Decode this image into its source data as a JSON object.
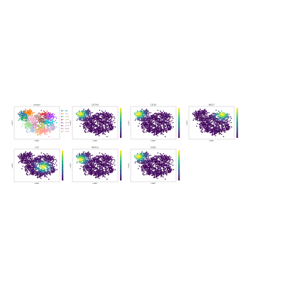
{
  "chart_data": [
    {
      "type": "scatter",
      "title": "leiden",
      "xlabel": "UMAP1",
      "ylabel": "UMAP2",
      "color_mode": "categorical",
      "legend_position": "right",
      "legend": [
        "0",
        "1",
        "2",
        "3",
        "4",
        "5",
        "6",
        "7",
        "8",
        "9",
        "10",
        "11",
        "12",
        "13",
        "14",
        "15"
      ],
      "palette": [
        "#1f77b4",
        "#ff7f0e",
        "#279e68",
        "#d62728",
        "#aa40fc",
        "#8c564b",
        "#e377c2",
        "#b5bd61",
        "#17becf",
        "#aec7e8",
        "#ffbb78",
        "#98df8a",
        "#ff9896",
        "#c5b0d5",
        "#c49c94",
        "#f7b6d2"
      ],
      "grid": false
    },
    {
      "type": "scatter",
      "title": "CD79A",
      "xlabel": "UMAP1",
      "ylabel": "UMAP2",
      "color_mode": "continuous",
      "colormap": "viridis",
      "hotspot": "top-left",
      "colorbar_ticks": [
        "",
        "",
        "",
        "",
        ""
      ],
      "grid": false
    },
    {
      "type": "scatter",
      "title": "CD3D",
      "xlabel": "UMAP1",
      "ylabel": "UMAP2",
      "color_mode": "continuous",
      "colormap": "viridis",
      "hotspot": "top-left",
      "colorbar_ticks": [
        "",
        "",
        "",
        "",
        ""
      ],
      "grid": false
    },
    {
      "type": "scatter",
      "title": "NKG7",
      "xlabel": "UMAP1",
      "ylabel": "UMAP2",
      "color_mode": "continuous",
      "colormap": "viridis",
      "hotspot": "top-right",
      "colorbar_ticks": [
        "",
        "",
        "",
        "",
        ""
      ],
      "grid": false
    },
    {
      "type": "scatter",
      "title": "LYZ",
      "xlabel": "UMAP1",
      "ylabel": "UMAP2",
      "color_mode": "continuous",
      "colormap": "viridis",
      "hotspot": "center-right",
      "colorbar_ticks": [
        "",
        "",
        "",
        "",
        ""
      ],
      "grid": false
    },
    {
      "type": "scatter",
      "title": "MS4A1",
      "xlabel": "UMAP1",
      "ylabel": "UMAP2",
      "color_mode": "continuous",
      "colormap": "viridis",
      "hotspot": "left",
      "colorbar_ticks": [
        "",
        "",
        "",
        "",
        ""
      ],
      "grid": false
    },
    {
      "type": "scatter",
      "title": "GNLY",
      "xlabel": "UMAP1",
      "ylabel": "UMAP2",
      "color_mode": "continuous",
      "colormap": "viridis",
      "hotspot": "top-left",
      "colorbar_ticks": [
        "",
        "",
        "",
        "",
        ""
      ],
      "grid": false
    }
  ]
}
